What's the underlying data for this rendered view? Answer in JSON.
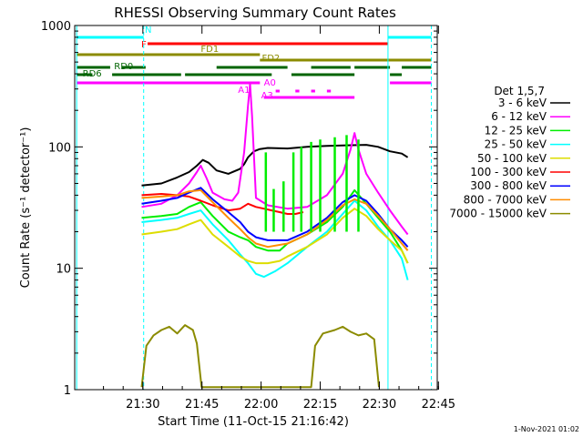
{
  "chart_data": {
    "type": "line",
    "title": "RHESSI Observing Summary Count Rates",
    "xlabel": "Start Time (11-Oct-15 21:16:42)",
    "ylabel": "Count Rate (s⁻¹ detector⁻¹)",
    "yscale": "log",
    "ylim": [
      1,
      1000
    ],
    "xlim_min": [
      -4,
      88
    ],
    "y_ticks": [
      {
        "value": 1,
        "label": "1"
      },
      {
        "value": 10,
        "label": "10"
      },
      {
        "value": 100,
        "label": "100"
      },
      {
        "value": 1000,
        "label": "1000"
      }
    ],
    "x_ticks": [
      {
        "t": 13.3,
        "label": "21:30"
      },
      {
        "t": 28.3,
        "label": "21:45"
      },
      {
        "t": 43.3,
        "label": "22:00"
      },
      {
        "t": 58.3,
        "label": "22:15"
      },
      {
        "t": 73.3,
        "label": "22:30"
      },
      {
        "t": 88.3,
        "label": "22:45"
      }
    ],
    "legend_title": "Det 1,5,7",
    "series": [
      {
        "name": "3 - 6 keV",
        "color": "#000000",
        "points": [
          [
            13,
            48
          ],
          [
            18,
            50
          ],
          [
            22,
            56
          ],
          [
            25,
            62
          ],
          [
            27,
            70
          ],
          [
            28.5,
            78
          ],
          [
            30,
            74
          ],
          [
            32,
            64
          ],
          [
            35,
            60
          ],
          [
            38,
            66
          ],
          [
            39,
            72
          ],
          [
            40,
            82
          ],
          [
            41.5,
            92
          ],
          [
            43,
            96
          ],
          [
            45,
            98
          ],
          [
            50,
            97
          ],
          [
            55,
            100
          ],
          [
            60,
            102
          ],
          [
            65,
            103
          ],
          [
            70,
            104
          ],
          [
            73,
            100
          ],
          [
            76,
            92
          ],
          [
            79,
            88
          ],
          [
            80.5,
            82
          ]
        ]
      },
      {
        "name": "6 - 12 keV",
        "color": "#ff00ff",
        "points": [
          [
            13,
            32
          ],
          [
            18,
            34
          ],
          [
            22,
            40
          ],
          [
            25,
            50
          ],
          [
            27,
            62
          ],
          [
            28,
            70
          ],
          [
            29.5,
            55
          ],
          [
            31,
            42
          ],
          [
            34,
            37
          ],
          [
            36,
            36
          ],
          [
            37.5,
            42
          ],
          [
            39,
            90
          ],
          [
            40,
            220
          ],
          [
            40.5,
            330
          ],
          [
            41,
            180
          ],
          [
            42,
            38
          ],
          [
            45,
            33
          ],
          [
            50,
            31
          ],
          [
            55,
            32
          ],
          [
            60,
            40
          ],
          [
            64,
            60
          ],
          [
            66,
            95
          ],
          [
            67,
            130
          ],
          [
            68,
            95
          ],
          [
            70,
            60
          ],
          [
            73,
            42
          ],
          [
            76,
            30
          ],
          [
            79,
            22
          ],
          [
            80.5,
            19
          ]
        ]
      },
      {
        "name": "12 - 25 keV",
        "color": "#00ee00",
        "points": [
          [
            13,
            26
          ],
          [
            18,
            27
          ],
          [
            22,
            28
          ],
          [
            25,
            32
          ],
          [
            28,
            35
          ],
          [
            31,
            27
          ],
          [
            35,
            20
          ],
          [
            38,
            18
          ],
          [
            40,
            17
          ],
          [
            42,
            15
          ],
          [
            45,
            14
          ],
          [
            48,
            14
          ],
          [
            50,
            16
          ],
          [
            55,
            19
          ],
          [
            60,
            24
          ],
          [
            64,
            32
          ],
          [
            67,
            44
          ],
          [
            70,
            34
          ],
          [
            73,
            26
          ],
          [
            76,
            20
          ],
          [
            79,
            14
          ],
          [
            80.5,
            11
          ]
        ]
      },
      {
        "name": "25 - 50 keV",
        "color": "#00ffff",
        "points": [
          [
            13,
            24
          ],
          [
            18,
            25
          ],
          [
            22,
            26
          ],
          [
            25,
            28
          ],
          [
            28,
            30
          ],
          [
            31,
            23
          ],
          [
            35,
            17
          ],
          [
            38,
            13
          ],
          [
            40,
            11
          ],
          [
            42,
            9
          ],
          [
            44,
            8.5
          ],
          [
            47,
            9.5
          ],
          [
            50,
            11
          ],
          [
            55,
            15
          ],
          [
            60,
            20
          ],
          [
            64,
            28
          ],
          [
            67,
            36
          ],
          [
            70,
            30
          ],
          [
            73,
            22
          ],
          [
            76,
            17
          ],
          [
            79,
            12
          ],
          [
            80.5,
            8
          ]
        ]
      },
      {
        "name": "50 - 100 keV",
        "color": "#dddd00",
        "points": [
          [
            13,
            19
          ],
          [
            18,
            20
          ],
          [
            22,
            21
          ],
          [
            25,
            23
          ],
          [
            28,
            25
          ],
          [
            31,
            19
          ],
          [
            35,
            15
          ],
          [
            38,
            12.5
          ],
          [
            40,
            11.5
          ],
          [
            42,
            11
          ],
          [
            45,
            11
          ],
          [
            48,
            11.5
          ],
          [
            50,
            12.5
          ],
          [
            55,
            15
          ],
          [
            60,
            19
          ],
          [
            64,
            26
          ],
          [
            67,
            31
          ],
          [
            70,
            27
          ],
          [
            73,
            21
          ],
          [
            76,
            17
          ],
          [
            79,
            14
          ],
          [
            80.5,
            11
          ]
        ]
      },
      {
        "name": "100 - 300 keV",
        "color": "#ff0000",
        "points": [
          [
            13,
            40
          ],
          [
            18,
            41
          ],
          [
            22,
            40
          ],
          [
            25,
            39
          ],
          [
            28,
            36
          ],
          [
            31,
            33
          ],
          [
            35,
            30
          ],
          [
            38,
            31
          ],
          [
            40,
            34
          ],
          [
            42,
            32
          ],
          [
            44,
            31
          ],
          [
            46,
            30
          ],
          [
            48,
            29
          ],
          [
            50,
            28
          ],
          [
            52,
            28
          ],
          [
            54,
            29
          ]
        ]
      },
      {
        "name": "300 - 800 keV",
        "color": "#0000ff",
        "points": [
          [
            13,
            34
          ],
          [
            18,
            36
          ],
          [
            22,
            38
          ],
          [
            25,
            42
          ],
          [
            28,
            46
          ],
          [
            31,
            37
          ],
          [
            35,
            29
          ],
          [
            38,
            24
          ],
          [
            40,
            20
          ],
          [
            42,
            18
          ],
          [
            45,
            17
          ],
          [
            50,
            17
          ],
          [
            55,
            20
          ],
          [
            60,
            26
          ],
          [
            64,
            35
          ],
          [
            67,
            40
          ],
          [
            70,
            36
          ],
          [
            73,
            28
          ],
          [
            76,
            21
          ],
          [
            79,
            17
          ],
          [
            80.5,
            15
          ]
        ]
      },
      {
        "name": "800 - 7000 keV",
        "color": "#ff8c00",
        "points": [
          [
            13,
            38
          ],
          [
            18,
            39
          ],
          [
            22,
            40
          ],
          [
            25,
            43
          ],
          [
            28,
            44
          ],
          [
            31,
            35
          ],
          [
            35,
            26
          ],
          [
            38,
            21
          ],
          [
            40,
            18
          ],
          [
            42,
            16
          ],
          [
            45,
            15
          ],
          [
            50,
            16
          ],
          [
            55,
            19
          ],
          [
            60,
            25
          ],
          [
            64,
            33
          ],
          [
            67,
            37
          ],
          [
            70,
            34
          ],
          [
            73,
            27
          ],
          [
            76,
            21
          ],
          [
            79,
            16
          ],
          [
            80.5,
            14
          ]
        ]
      },
      {
        "name": "7000 - 15000 keV",
        "color": "#8b8b00",
        "points": [
          [
            13,
            1.05
          ],
          [
            14.2,
            2.3
          ],
          [
            16,
            2.8
          ],
          [
            18,
            3.1
          ],
          [
            20,
            3.3
          ],
          [
            22,
            2.9
          ],
          [
            24,
            3.4
          ],
          [
            26,
            3.1
          ],
          [
            27,
            2.4
          ],
          [
            28.2,
            1.05
          ],
          [
            56,
            1.05
          ],
          [
            57,
            2.3
          ],
          [
            59,
            2.9
          ],
          [
            62,
            3.1
          ],
          [
            64,
            3.3
          ],
          [
            66,
            3.0
          ],
          [
            68,
            2.8
          ],
          [
            70,
            2.9
          ],
          [
            72,
            2.6
          ],
          [
            73.2,
            1.05
          ]
        ]
      }
    ],
    "spikes": [
      {
        "series": "12 - 25 keV",
        "t": [
          44.5,
          46.5,
          49,
          51.5,
          53.5,
          56,
          58.3,
          62,
          65,
          68
        ],
        "peak": [
          90,
          45,
          52,
          90,
          100,
          110,
          115,
          120,
          125,
          115
        ]
      }
    ],
    "flag_bars": [
      {
        "label": "N",
        "color": "#00ffff",
        "segments": [
          [
            -3.5,
            13.5
          ],
          [
            75.5,
            86.5
          ]
        ]
      },
      {
        "label": "F",
        "color": "#ff0000",
        "segments": [
          [
            14.5,
            75.5
          ]
        ]
      },
      {
        "label": "FD1",
        "color": "#8b8b00",
        "segments": [
          [
            -3.5,
            43
          ]
        ]
      },
      {
        "label": "FD2",
        "color": "#8b8b00",
        "segments": [
          [
            43,
            86.5
          ]
        ]
      },
      {
        "label": "RD0",
        "color": "#006400",
        "segments": [
          [
            -3.5,
            5
          ],
          [
            8,
            14
          ],
          [
            32,
            50
          ],
          [
            56,
            66
          ],
          [
            67,
            76
          ],
          [
            79,
            86.5
          ]
        ]
      },
      {
        "label": "RD6",
        "color": "#006400",
        "segments": [
          [
            -3.5,
            0.5
          ],
          [
            5.5,
            23
          ],
          [
            24,
            46
          ],
          [
            51,
            67
          ],
          [
            76,
            79
          ]
        ]
      },
      {
        "label": "A0",
        "color": "#ff00ff",
        "segments": [
          [
            -3.5,
            43
          ],
          [
            76,
            86.5
          ]
        ]
      },
      {
        "label": "A1",
        "color": "#ff00ff",
        "segments": [
          [
            47,
            48
          ],
          [
            52,
            53
          ],
          [
            56,
            57
          ],
          [
            60,
            61
          ]
        ]
      },
      {
        "label": "A3",
        "color": "#ff00ff",
        "segments": [
          [
            44,
            65
          ],
          [
            65,
            67
          ]
        ]
      }
    ],
    "vlines": [
      {
        "t": -3.5,
        "color": "#00ffff",
        "style": "solid"
      },
      {
        "t": 13.5,
        "color": "#00ffff",
        "style": "dashed"
      },
      {
        "t": 75.5,
        "color": "#00ffff",
        "style": "solid"
      },
      {
        "t": 86.5,
        "color": "#00ffff",
        "style": "dashed"
      }
    ],
    "footer_date": "1-Nov-2021 01:02"
  }
}
